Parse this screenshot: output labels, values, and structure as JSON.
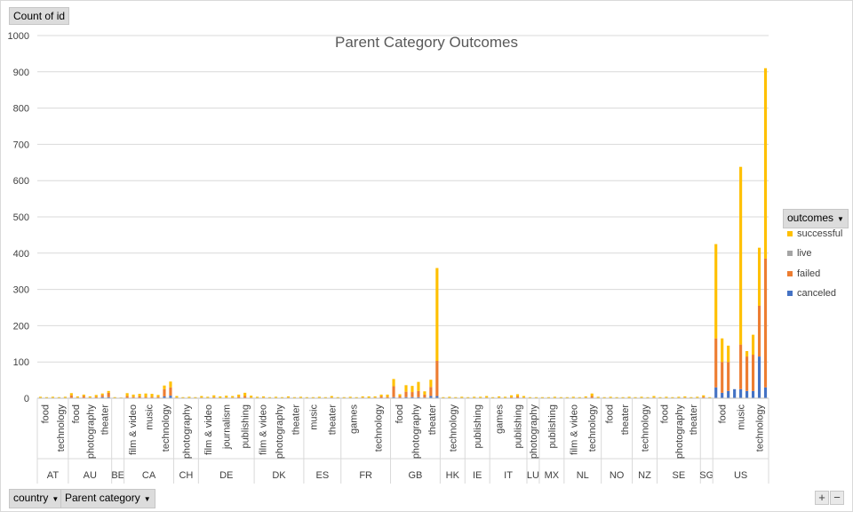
{
  "buttons": {
    "value_field": "Count of id",
    "legend_field": "outcomes",
    "axis_fields": [
      "country",
      "Parent category"
    ]
  },
  "colors": {
    "successful": "#ffc000",
    "live": "#a5a5a5",
    "failed": "#ed7d31",
    "canceled": "#4472c4",
    "gridline": "#d9d9d9"
  },
  "icons": {
    "dropdown": "chevron-down-icon",
    "expand": "plus-icon",
    "collapse": "minus-icon"
  },
  "zoom": {
    "expand": "+",
    "collapse": "−"
  },
  "chart_data": {
    "type": "bar",
    "stacked": true,
    "title": "Parent Category Outcomes",
    "ylabel": "",
    "ylim": [
      0,
      1000
    ],
    "yticks": [
      0,
      100,
      200,
      300,
      400,
      500,
      600,
      700,
      800,
      900,
      1000
    ],
    "grid": true,
    "legend_title": "outcomes",
    "legend_position": "right",
    "legend": [
      "successful",
      "live",
      "failed",
      "canceled"
    ],
    "groups": [
      {
        "country": "AT",
        "categories": [
          "food",
          "technology"
        ]
      },
      {
        "country": "AU",
        "categories": [
          "food",
          "photography",
          "theater"
        ]
      },
      {
        "country": "BE",
        "categories": [
          ""
        ]
      },
      {
        "country": "CA",
        "categories": [
          "film & video",
          "music",
          "technology"
        ]
      },
      {
        "country": "CH",
        "categories": [
          "photography"
        ]
      },
      {
        "country": "DE",
        "categories": [
          "film & video",
          "journalism",
          "publishing"
        ]
      },
      {
        "country": "DK",
        "categories": [
          "film & video",
          "photography",
          "theater"
        ]
      },
      {
        "country": "ES",
        "categories": [
          "music",
          "theater"
        ]
      },
      {
        "country": "FR",
        "categories": [
          "games",
          "technology"
        ]
      },
      {
        "country": "GB",
        "categories": [
          "food",
          "photography",
          "theater"
        ]
      },
      {
        "country": "HK",
        "categories": [
          "technology"
        ]
      },
      {
        "country": "IE",
        "categories": [
          "publishing"
        ]
      },
      {
        "country": "IT",
        "categories": [
          "games",
          "publishing"
        ]
      },
      {
        "country": "LU",
        "categories": [
          "photography"
        ]
      },
      {
        "country": "MX",
        "categories": [
          "publishing"
        ]
      },
      {
        "country": "NL",
        "categories": [
          "film & video",
          "technology"
        ]
      },
      {
        "country": "NO",
        "categories": [
          "food",
          "theater"
        ]
      },
      {
        "country": "NZ",
        "categories": [
          "technology"
        ]
      },
      {
        "country": "SE",
        "categories": [
          "food",
          "photography",
          "theater"
        ]
      },
      {
        "country": "SG",
        "categories": [
          ""
        ]
      },
      {
        "country": "US",
        "categories": [
          "food",
          "music",
          "technology"
        ]
      }
    ],
    "bars": [
      {
        "country": "AT",
        "values": [
          3,
          0,
          1,
          0
        ]
      },
      {
        "country": "AT",
        "values": [
          2,
          0,
          1,
          0
        ]
      },
      {
        "country": "AT",
        "values": [
          3,
          0,
          1,
          0
        ]
      },
      {
        "country": "AT",
        "values": [
          2,
          0,
          1,
          0
        ]
      },
      {
        "country": "AT",
        "values": [
          3,
          0,
          1,
          0
        ]
      },
      {
        "country": "AU",
        "values": [
          6,
          0,
          7,
          1
        ]
      },
      {
        "country": "AU",
        "values": [
          3,
          0,
          2,
          0
        ]
      },
      {
        "country": "AU",
        "values": [
          4,
          0,
          5,
          1
        ]
      },
      {
        "country": "AU",
        "values": [
          3,
          0,
          2,
          0
        ]
      },
      {
        "country": "AU",
        "values": [
          5,
          0,
          3,
          1
        ]
      },
      {
        "country": "AU",
        "values": [
          4,
          0,
          6,
          3
        ]
      },
      {
        "country": "AU",
        "values": [
          5,
          0,
          12,
          3
        ]
      },
      {
        "country": "BE",
        "values": [
          2,
          0,
          1,
          0
        ]
      },
      {
        "country": "BE",
        "values": [
          2,
          0,
          0,
          0
        ]
      },
      {
        "country": "CA",
        "values": [
          8,
          0,
          5,
          1
        ]
      },
      {
        "country": "CA",
        "values": [
          6,
          0,
          4,
          0
        ]
      },
      {
        "country": "CA",
        "values": [
          7,
          0,
          4,
          1
        ]
      },
      {
        "country": "CA",
        "values": [
          9,
          0,
          4,
          0
        ]
      },
      {
        "country": "CA",
        "values": [
          8,
          0,
          3,
          1
        ]
      },
      {
        "country": "CA",
        "values": [
          5,
          0,
          3,
          1
        ]
      },
      {
        "country": "CA",
        "values": [
          10,
          0,
          20,
          5
        ]
      },
      {
        "country": "CA",
        "values": [
          16,
          0,
          23,
          7
        ]
      },
      {
        "country": "CH",
        "values": [
          4,
          0,
          2,
          0
        ]
      },
      {
        "country": "CH",
        "values": [
          2,
          0,
          1,
          0
        ]
      },
      {
        "country": "CH",
        "values": [
          3,
          0,
          1,
          0
        ]
      },
      {
        "country": "CH",
        "values": [
          2,
          0,
          1,
          0
        ]
      },
      {
        "country": "DE",
        "values": [
          4,
          0,
          2,
          0
        ]
      },
      {
        "country": "DE",
        "values": [
          3,
          0,
          1,
          0
        ]
      },
      {
        "country": "DE",
        "values": [
          5,
          0,
          2,
          1
        ]
      },
      {
        "country": "DE",
        "values": [
          4,
          0,
          1,
          0
        ]
      },
      {
        "country": "DE",
        "values": [
          5,
          0,
          2,
          0
        ]
      },
      {
        "country": "DE",
        "values": [
          4,
          0,
          2,
          0
        ]
      },
      {
        "country": "DE",
        "values": [
          6,
          0,
          3,
          1
        ]
      },
      {
        "country": "DE",
        "values": [
          9,
          0,
          5,
          1
        ]
      },
      {
        "country": "DE",
        "values": [
          5,
          0,
          2,
          0
        ]
      },
      {
        "country": "DK",
        "values": [
          3,
          0,
          1,
          0
        ]
      },
      {
        "country": "DK",
        "values": [
          3,
          0,
          2,
          0
        ]
      },
      {
        "country": "DK",
        "values": [
          2,
          0,
          1,
          0
        ]
      },
      {
        "country": "DK",
        "values": [
          3,
          0,
          1,
          0
        ]
      },
      {
        "country": "DK",
        "values": [
          2,
          0,
          1,
          0
        ]
      },
      {
        "country": "DK",
        "values": [
          3,
          0,
          2,
          0
        ]
      },
      {
        "country": "DK",
        "values": [
          2,
          0,
          1,
          0
        ]
      },
      {
        "country": "DK",
        "values": [
          3,
          0,
          1,
          0
        ]
      },
      {
        "country": "ES",
        "values": [
          2,
          0,
          1,
          0
        ]
      },
      {
        "country": "ES",
        "values": [
          2,
          0,
          1,
          0
        ]
      },
      {
        "country": "ES",
        "values": [
          3,
          0,
          1,
          0
        ]
      },
      {
        "country": "ES",
        "values": [
          2,
          0,
          1,
          0
        ]
      },
      {
        "country": "ES",
        "values": [
          4,
          0,
          2,
          0
        ]
      },
      {
        "country": "ES",
        "values": [
          2,
          0,
          1,
          0
        ]
      },
      {
        "country": "FR",
        "values": [
          2,
          0,
          1,
          0
        ]
      },
      {
        "country": "FR",
        "values": [
          3,
          0,
          1,
          0
        ]
      },
      {
        "country": "FR",
        "values": [
          2,
          0,
          1,
          0
        ]
      },
      {
        "country": "FR",
        "values": [
          3,
          0,
          2,
          0
        ]
      },
      {
        "country": "FR",
        "values": [
          4,
          0,
          1,
          0
        ]
      },
      {
        "country": "FR",
        "values": [
          3,
          0,
          2,
          0
        ]
      },
      {
        "country": "FR",
        "values": [
          5,
          0,
          4,
          1
        ]
      },
      {
        "country": "FR",
        "values": [
          6,
          0,
          3,
          1
        ]
      },
      {
        "country": "GB",
        "values": [
          20,
          0,
          30,
          3
        ]
      },
      {
        "country": "GB",
        "values": [
          5,
          0,
          5,
          1
        ]
      },
      {
        "country": "GB",
        "values": [
          18,
          0,
          15,
          3
        ]
      },
      {
        "country": "GB",
        "values": [
          17,
          0,
          14,
          3
        ]
      },
      {
        "country": "GB",
        "values": [
          25,
          0,
          17,
          3
        ]
      },
      {
        "country": "GB",
        "values": [
          9,
          0,
          8,
          2
        ]
      },
      {
        "country": "GB",
        "values": [
          20,
          0,
          25,
          6
        ]
      },
      {
        "country": "GB",
        "values": [
          256,
          0,
          97,
          6
        ]
      },
      {
        "country": "HK",
        "values": [
          2,
          0,
          1,
          0
        ]
      },
      {
        "country": "HK",
        "values": [
          3,
          0,
          1,
          0
        ]
      },
      {
        "country": "HK",
        "values": [
          2,
          0,
          1,
          0
        ]
      },
      {
        "country": "HK",
        "values": [
          3,
          0,
          1,
          0
        ]
      },
      {
        "country": "IE",
        "values": [
          2,
          0,
          1,
          0
        ]
      },
      {
        "country": "IE",
        "values": [
          3,
          0,
          1,
          0
        ]
      },
      {
        "country": "IE",
        "values": [
          3,
          0,
          1,
          0
        ]
      },
      {
        "country": "IE",
        "values": [
          4,
          0,
          2,
          0
        ]
      },
      {
        "country": "IT",
        "values": [
          2,
          0,
          1,
          0
        ]
      },
      {
        "country": "IT",
        "values": [
          3,
          0,
          2,
          0
        ]
      },
      {
        "country": "IT",
        "values": [
          3,
          0,
          1,
          0
        ]
      },
      {
        "country": "IT",
        "values": [
          5,
          0,
          3,
          0
        ]
      },
      {
        "country": "IT",
        "values": [
          6,
          0,
          5,
          0
        ]
      },
      {
        "country": "IT",
        "values": [
          4,
          0,
          2,
          0
        ]
      },
      {
        "country": "LU",
        "values": [
          2,
          0,
          1,
          0
        ]
      },
      {
        "country": "LU",
        "values": [
          2,
          0,
          1,
          0
        ]
      },
      {
        "country": "MX",
        "values": [
          2,
          0,
          1,
          0
        ]
      },
      {
        "country": "MX",
        "values": [
          2,
          0,
          1,
          0
        ]
      },
      {
        "country": "MX",
        "values": [
          3,
          0,
          1,
          0
        ]
      },
      {
        "country": "MX",
        "values": [
          2,
          0,
          1,
          0
        ]
      },
      {
        "country": "NL",
        "values": [
          2,
          0,
          1,
          0
        ]
      },
      {
        "country": "NL",
        "values": [
          3,
          0,
          1,
          0
        ]
      },
      {
        "country": "NL",
        "values": [
          2,
          0,
          1,
          0
        ]
      },
      {
        "country": "NL",
        "values": [
          3,
          0,
          2,
          0
        ]
      },
      {
        "country": "NL",
        "values": [
          7,
          0,
          6,
          0
        ]
      },
      {
        "country": "NL",
        "values": [
          3,
          0,
          1,
          0
        ]
      },
      {
        "country": "NO",
        "values": [
          2,
          0,
          1,
          0
        ]
      },
      {
        "country": "NO",
        "values": [
          3,
          0,
          1,
          0
        ]
      },
      {
        "country": "NO",
        "values": [
          2,
          0,
          1,
          0
        ]
      },
      {
        "country": "NO",
        "values": [
          2,
          0,
          1,
          0
        ]
      },
      {
        "country": "NO",
        "values": [
          3,
          0,
          1,
          0
        ]
      },
      {
        "country": "NZ",
        "values": [
          2,
          0,
          1,
          0
        ]
      },
      {
        "country": "NZ",
        "values": [
          3,
          0,
          1,
          0
        ]
      },
      {
        "country": "NZ",
        "values": [
          2,
          0,
          1,
          0
        ]
      },
      {
        "country": "NZ",
        "values": [
          4,
          0,
          2,
          0
        ]
      },
      {
        "country": "SE",
        "values": [
          2,
          0,
          1,
          0
        ]
      },
      {
        "country": "SE",
        "values": [
          3,
          0,
          1,
          0
        ]
      },
      {
        "country": "SE",
        "values": [
          2,
          0,
          1,
          0
        ]
      },
      {
        "country": "SE",
        "values": [
          3,
          0,
          1,
          0
        ]
      },
      {
        "country": "SE",
        "values": [
          3,
          0,
          2,
          0
        ]
      },
      {
        "country": "SE",
        "values": [
          2,
          0,
          1,
          0
        ]
      },
      {
        "country": "SE",
        "values": [
          3,
          0,
          1,
          0
        ]
      },
      {
        "country": "SG",
        "values": [
          4,
          0,
          3,
          1
        ]
      },
      {
        "country": "SG",
        "values": [
          2,
          0,
          1,
          0
        ]
      },
      {
        "country": "US",
        "values": [
          260,
          0,
          135,
          30
        ]
      },
      {
        "country": "US",
        "values": [
          65,
          0,
          85,
          15
        ]
      },
      {
        "country": "US",
        "values": [
          45,
          0,
          80,
          20
        ]
      },
      {
        "country": "US",
        "values": [
          0,
          0,
          0,
          25
        ]
      },
      {
        "country": "US",
        "values": [
          490,
          0,
          123,
          25
        ]
      },
      {
        "country": "US",
        "values": [
          15,
          0,
          95,
          20
        ]
      },
      {
        "country": "US",
        "values": [
          55,
          0,
          100,
          20
        ]
      },
      {
        "country": "US",
        "values": [
          160,
          0,
          140,
          115
        ]
      },
      {
        "country": "US",
        "values": [
          525,
          0,
          355,
          30
        ]
      }
    ]
  }
}
